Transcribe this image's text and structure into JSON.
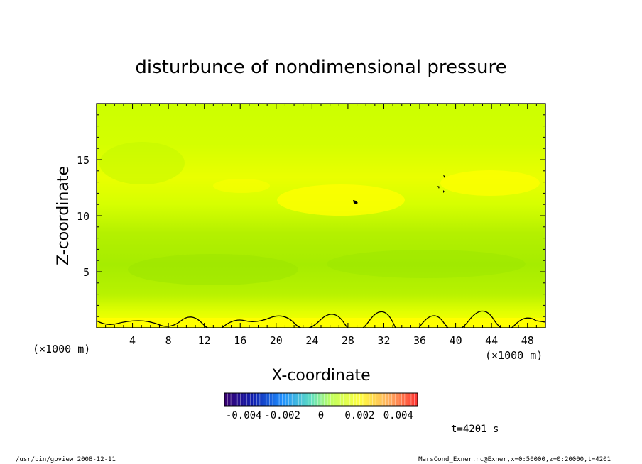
{
  "chart_data": {
    "type": "heatmap",
    "title": "disturbunce of nondimensional pressure",
    "xlabel": "X-coordinate",
    "ylabel": "Z-coordinate",
    "x_unit_label": "(×1000 m)",
    "y_unit_label": "(×1000 m)",
    "xlim": [
      0,
      50
    ],
    "ylim": [
      0,
      20
    ],
    "x_ticks": [
      4,
      8,
      12,
      16,
      20,
      24,
      28,
      32,
      36,
      40,
      44,
      48
    ],
    "y_ticks": [
      5,
      10,
      15
    ],
    "colorbar": {
      "min": -0.005,
      "max": 0.005,
      "ticks": [
        "-0.004",
        "-0.002",
        "0",
        "0.002",
        "0.004"
      ]
    },
    "field_description_values": {
      "bands_z": [
        {
          "z": 0.5,
          "value": 0.0028
        },
        {
          "z": 3,
          "value": 0.0008
        },
        {
          "z": 6,
          "value": 0.0005
        },
        {
          "z": 9,
          "value": 0.0012
        },
        {
          "z": 12,
          "value": 0.0022
        },
        {
          "z": 16,
          "value": 0.0012
        },
        {
          "z": 19,
          "value": 0.001
        }
      ]
    },
    "time_label": "t=4201 s"
  },
  "footer": {
    "left": "/usr/bin/gpview  2008-12-11",
    "right": "MarsCond_Exner.nc@Exner,x=0:50000,z=0:20000,t=4201"
  },
  "colors": {
    "yellow": "#ffff00",
    "yellow_green": "#ccff00",
    "light_green": "#b8f200",
    "green": "#9ee800"
  }
}
